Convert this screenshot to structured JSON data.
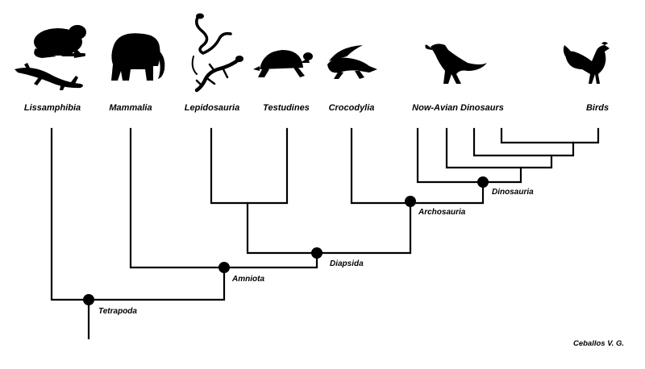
{
  "taxa": {
    "lissamphibia": "Lissamphibia",
    "mammalia": "Mammalia",
    "lepidosauria": "Lepidosauria",
    "testudines": "Testudines",
    "crocodylia": "Crocodylia",
    "non_avian_dinosaurs": "Now-Avian Dinosaurs",
    "birds": "Birds"
  },
  "clades": {
    "tetrapoda": "Tetrapoda",
    "amniota": "Amniota",
    "diapsida": "Diapsida",
    "archosauria": "Archosauria",
    "dinosauria": "Dinosauria"
  },
  "credit": "Ceballos V. G.",
  "icons": {
    "frog": "frog-icon",
    "salamander": "salamander-icon",
    "elephant": "elephant-icon",
    "snake": "snake-icon",
    "lizard": "lizard-icon",
    "turtle": "turtle-icon",
    "crocodile": "crocodile-icon",
    "dinosaur": "dinosaur-icon",
    "rooster": "rooster-icon"
  },
  "colors": {
    "ink": "#000000",
    "background": "#ffffff"
  }
}
